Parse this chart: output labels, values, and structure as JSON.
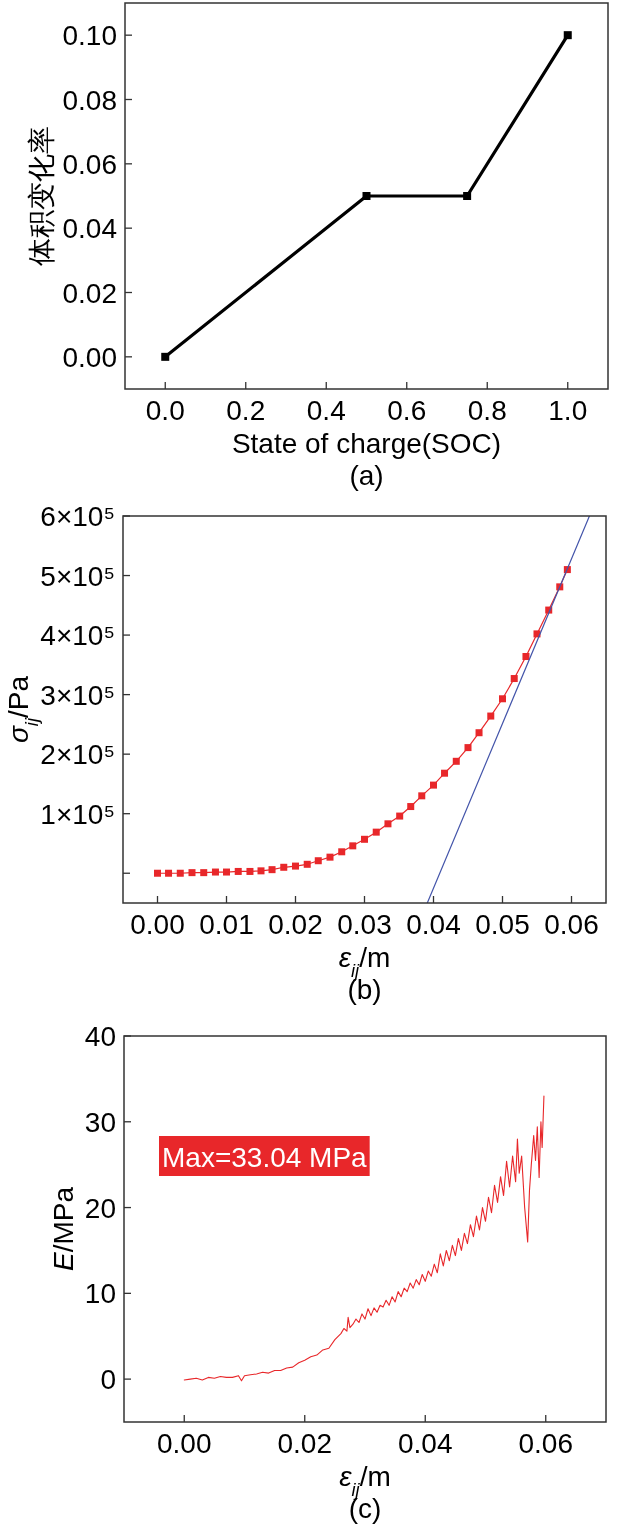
{
  "chart_data": [
    {
      "type": "line",
      "xlabel": "State of charge(SOC)",
      "ylabel": "体积变化率",
      "subtitle": "(a)",
      "xlim": [
        -0.1,
        1.1
      ],
      "ylim": [
        -0.01,
        0.11
      ],
      "xticks": [
        {
          "value": 0,
          "label": "0.0"
        },
        {
          "value": 0.2,
          "label": "0.2"
        },
        {
          "value": 0.4,
          "label": "0.4"
        },
        {
          "value": 0.6,
          "label": "0.6"
        },
        {
          "value": 0.8,
          "label": "0.8"
        },
        {
          "value": 1,
          "label": "1.0"
        }
      ],
      "yticks": [
        {
          "value": 0,
          "label": "0.00"
        },
        {
          "value": 0.02,
          "label": "0.02"
        },
        {
          "value": 0.04,
          "label": "0.04"
        },
        {
          "value": 0.06,
          "label": "0.06"
        },
        {
          "value": 0.08,
          "label": "0.08"
        },
        {
          "value": 0.1,
          "label": "0.10"
        }
      ],
      "series": [
        {
          "type": "line",
          "color": "#000000",
          "marker": "square",
          "x": [
            0,
            0.5,
            0.75,
            1.0
          ],
          "values": [
            0,
            0.05,
            0.05,
            0.1
          ]
        }
      ]
    },
    {
      "type": "line",
      "xlabel": "ε$_{ij}$/m",
      "ylabel": "σ$_{ij}$/Pa",
      "subtitle": "(b)",
      "xlim": [
        -0.005,
        0.065
      ],
      "ylim": [
        -50000,
        600000
      ],
      "xticks": [
        {
          "value": 0,
          "label": "0.00"
        },
        {
          "value": 0.01,
          "label": "0.01"
        },
        {
          "value": 0.02,
          "label": "0.02"
        },
        {
          "value": 0.03,
          "label": "0.03"
        },
        {
          "value": 0.04,
          "label": "0.04"
        },
        {
          "value": 0.05,
          "label": "0.05"
        },
        {
          "value": 0.06,
          "label": "0.06"
        }
      ],
      "yticks": [
        {
          "value": 0,
          "label": null
        },
        {
          "value": 100000,
          "label": "1×10⁵"
        },
        {
          "value": 200000,
          "label": "2×10⁵"
        },
        {
          "value": 300000,
          "label": "3×10⁵"
        },
        {
          "value": 400000,
          "label": "4×10⁵"
        },
        {
          "value": 500000,
          "label": "5×10⁵"
        },
        {
          "value": 600000,
          "label": "6×10⁵"
        }
      ],
      "series": [
        {
          "type": "line",
          "color": "#e8272a",
          "marker": "square",
          "x": [
            0,
            0.0016,
            0.0033,
            0.005,
            0.0067,
            0.0084,
            0.01,
            0.0117,
            0.0134,
            0.015,
            0.0166,
            0.0183,
            0.02,
            0.0217,
            0.0233,
            0.025,
            0.0267,
            0.0283,
            0.03,
            0.0317,
            0.0334,
            0.0351,
            0.0367,
            0.0383,
            0.04,
            0.0416,
            0.0433,
            0.045,
            0.0466,
            0.0483,
            0.05,
            0.0517,
            0.0534,
            0.055,
            0.0567,
            0.0583,
            0.0594
          ],
          "values": [
            0,
            0,
            0,
            1000,
            1000,
            2000,
            2000,
            3000,
            3000,
            4000,
            6000,
            10000,
            12000,
            15000,
            21000,
            27000,
            36000,
            46000,
            57000,
            69000,
            83000,
            96000,
            112000,
            130000,
            148000,
            168000,
            188000,
            211000,
            236000,
            264000,
            293000,
            327000,
            364000,
            402000,
            442000,
            481000,
            510000
          ]
        },
        {
          "type": "line",
          "color": "#4455aa",
          "marker": "none",
          "x": [
            0.0391,
            0.0626
          ],
          "values": [
            -50000,
            600000
          ]
        }
      ]
    },
    {
      "type": "line",
      "xlabel": "ε$_{ij}$/m",
      "ylabel": "E/MPa",
      "subtitle": "(c)",
      "annotations": [
        "Max=33.04 MPa"
      ],
      "xlim": [
        -0.01,
        0.07
      ],
      "ylim": [
        -5,
        40
      ],
      "xticks": [
        {
          "value": 0,
          "label": "0.00"
        },
        {
          "value": 0.02,
          "label": "0.02"
        },
        {
          "value": 0.04,
          "label": "0.04"
        },
        {
          "value": 0.06,
          "label": "0.06"
        }
      ],
      "yticks": [
        0,
        10,
        20,
        30,
        40
      ],
      "series": [
        {
          "type": "line",
          "color": "#e8272a",
          "marker": "none",
          "x": [
            0,
            0.001,
            0.002,
            0.003,
            0.004,
            0.005,
            0.006,
            0.007,
            0.008,
            0.009,
            0.0095,
            0.01,
            0.011,
            0.012,
            0.013,
            0.014,
            0.015,
            0.016,
            0.017,
            0.018,
            0.019,
            0.02,
            0.021,
            0.022,
            0.023,
            0.024,
            0.025,
            0.026,
            0.0265,
            0.027,
            0.0272,
            0.0275,
            0.028,
            0.0285,
            0.029,
            0.0295,
            0.03,
            0.0305,
            0.031,
            0.0315,
            0.032,
            0.0325,
            0.033,
            0.0335,
            0.034,
            0.0345,
            0.035,
            0.0355,
            0.036,
            0.0365,
            0.037,
            0.0375,
            0.038,
            0.0385,
            0.039,
            0.0395,
            0.04,
            0.0405,
            0.041,
            0.0415,
            0.042,
            0.0425,
            0.043,
            0.0435,
            0.044,
            0.0445,
            0.045,
            0.0455,
            0.046,
            0.0465,
            0.047,
            0.0475,
            0.048,
            0.0485,
            0.049,
            0.0495,
            0.05,
            0.0505,
            0.051,
            0.0515,
            0.052,
            0.0525,
            0.053,
            0.0535,
            0.054,
            0.0545,
            0.055,
            0.0553,
            0.0556,
            0.056,
            0.0565,
            0.057,
            0.0573,
            0.0576,
            0.058,
            0.0583,
            0.0586,
            0.0589,
            0.0592,
            0.0594,
            0.0597
          ],
          "values": [
            -0.1,
            0.0,
            0.1,
            -0.1,
            0.2,
            0.1,
            0.3,
            0.2,
            0.2,
            0.4,
            -0.2,
            0.4,
            0.5,
            0.6,
            0.8,
            0.7,
            1.0,
            1.0,
            1.3,
            1.4,
            1.9,
            2.2,
            2.6,
            2.8,
            3.4,
            3.6,
            4.6,
            5.3,
            5.9,
            5.6,
            7.2,
            6.0,
            6.4,
            7.0,
            6.6,
            7.6,
            7.0,
            8.2,
            7.4,
            8.3,
            7.8,
            8.6,
            8.4,
            9.2,
            8.6,
            9.6,
            9.0,
            10.2,
            9.6,
            10.6,
            10.2,
            11.2,
            10.6,
            11.6,
            11.0,
            12.2,
            11.4,
            12.6,
            12.0,
            13.4,
            12.4,
            14.6,
            13.2,
            15.0,
            13.8,
            15.6,
            14.4,
            16.4,
            15.0,
            17.0,
            15.8,
            18.0,
            16.6,
            19.0,
            17.4,
            20.0,
            18.4,
            21.2,
            19.4,
            22.6,
            20.6,
            23.6,
            21.4,
            25.4,
            22.4,
            26.0,
            23.0,
            28.0,
            24.0,
            26.0,
            20.0,
            16.0,
            22.0,
            25.0,
            28.4,
            25.5,
            29.4,
            23.5,
            30.0,
            27.0,
            33.0
          ]
        }
      ]
    }
  ]
}
